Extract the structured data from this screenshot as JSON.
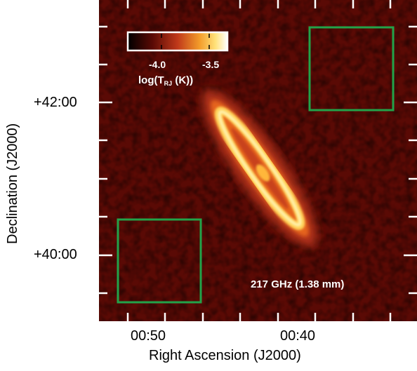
{
  "image": {
    "subject": "217 GHz (1.38 mm)",
    "colormap": "black-red-orange-yellow-white heat map",
    "region_box_color": "#22a34a",
    "colorbar": {
      "tick_labels": [
        "-4.0",
        "-3.5"
      ],
      "label_main": "log(T",
      "label_sub": "RJ",
      "label_tail": " (K))"
    }
  },
  "axes": {
    "xlabel": "Right Ascension (J2000)",
    "ylabel": "Declination (J2000)",
    "x_ticks": [
      "00:50",
      "00:40"
    ],
    "y_ticks": [
      "+42:00",
      "+40:00"
    ]
  },
  "colors": {
    "background": "#ffffff",
    "map_bg": "#5a0a05",
    "boxes": "#22a34a",
    "ticks": "#ffffff"
  }
}
